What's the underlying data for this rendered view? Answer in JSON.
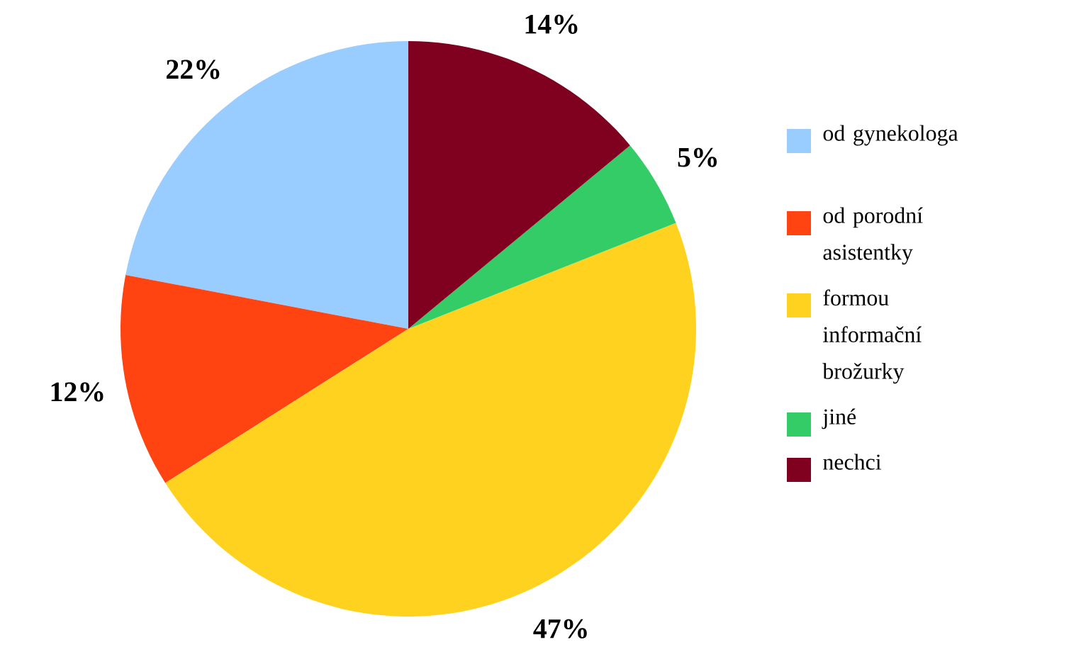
{
  "chart_data": {
    "type": "pie",
    "categories": [
      "od gynekologa",
      "od porodní asistentky",
      "formou informační brožurky",
      "jiné",
      "nechci"
    ],
    "values": [
      22,
      12,
      47,
      5,
      14
    ],
    "colors": [
      "#99ccff",
      "#ff4411",
      "#ffd21f",
      "#33cc66",
      "#800020"
    ],
    "value_labels": [
      "22%",
      "12%",
      "47%",
      "5%",
      "14%"
    ],
    "legend": "right"
  }
}
